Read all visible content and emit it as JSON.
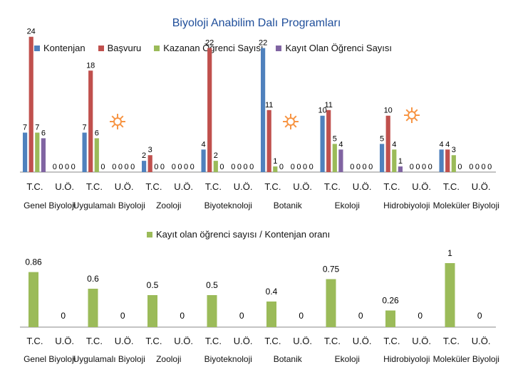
{
  "chart_data": [
    {
      "type": "bar",
      "title": "Biyoloji Anabilim Dalı Programları",
      "categories": [
        "Genel Biyoloji",
        "Uygulamalı Biyoloji",
        "Zooloji",
        "Biyoteknoloji",
        "Botanik",
        "Ekoloji",
        "Hidrobiyoloji",
        "Moleküler Biyoloji"
      ],
      "subcategories": [
        "T.C.",
        "U.Ö."
      ],
      "series": [
        {
          "name": "Kontenjan",
          "color": "#4f81bd",
          "values": [
            [
              7,
              0
            ],
            [
              7,
              0
            ],
            [
              2,
              0
            ],
            [
              4,
              0
            ],
            [
              22,
              0
            ],
            [
              10,
              0
            ],
            [
              5,
              0
            ],
            [
              4,
              0
            ]
          ]
        },
        {
          "name": "Başvuru",
          "color": "#c0504d",
          "values": [
            [
              24,
              0
            ],
            [
              18,
              0
            ],
            [
              3,
              0
            ],
            [
              22,
              0
            ],
            [
              11,
              0
            ],
            [
              11,
              0
            ],
            [
              10,
              0
            ],
            [
              4,
              0
            ]
          ]
        }
      ],
      "kazanan_kayit": {
        "note": "",
        "kazanan": [
          [
            7,
            0
          ],
          [
            6,
            0
          ],
          [
            0,
            0
          ],
          [
            2,
            0
          ],
          [
            1,
            0
          ],
          [
            5,
            0
          ],
          [
            4,
            0
          ],
          [
            3,
            0
          ]
        ],
        "kayit": [
          [
            6,
            0
          ],
          [
            0,
            0
          ],
          [
            0,
            0
          ],
          [
            0,
            0
          ],
          [
            0,
            0
          ],
          [
            4,
            0
          ],
          [
            1,
            0
          ],
          [
            0,
            0
          ]
        ]
      },
      "ylim": [
        0,
        28
      ]
    },
    {
      "type": "bar",
      "title": "",
      "legend": "Kayıt olan öğrenci sayısı / Kontenjan oranı",
      "categories": [
        "Genel Biyoloji",
        "Uygulamalı Biyoloji",
        "Zooloji",
        "Biyoteknoloji",
        "Botanik",
        "Ekoloji",
        "Hidrobiyoloji",
        "Moleküler Biyoloji"
      ],
      "subcategories": [
        "T.C.",
        "U.Ö."
      ],
      "series": [
        {
          "name": "Kayıt olan öğrenci sayısı / Kontenjan oranı",
          "color": "#9bbb59",
          "values": [
            [
              0.86,
              0
            ],
            [
              0.6,
              0
            ],
            [
              0.5,
              0
            ],
            [
              0.5,
              0
            ],
            [
              0.4,
              0
            ],
            [
              0.75,
              0
            ],
            [
              0.26,
              0
            ],
            [
              1,
              0
            ]
          ]
        }
      ],
      "ylim": [
        0,
        1
      ]
    }
  ],
  "legend_top": [
    "Kontenjan",
    "Başvuru",
    "Kazanan Öğrenci Sayısı",
    "Kayıt Olan Öğrenci Sayısı"
  ],
  "colors": {
    "kontenjan": "#4f81bd",
    "basvuru": "#c0504d",
    "kazanan": "#9bbb59",
    "kayit": "#8064a2",
    "title": "#1f4e9a",
    "sun": "#f79646"
  }
}
